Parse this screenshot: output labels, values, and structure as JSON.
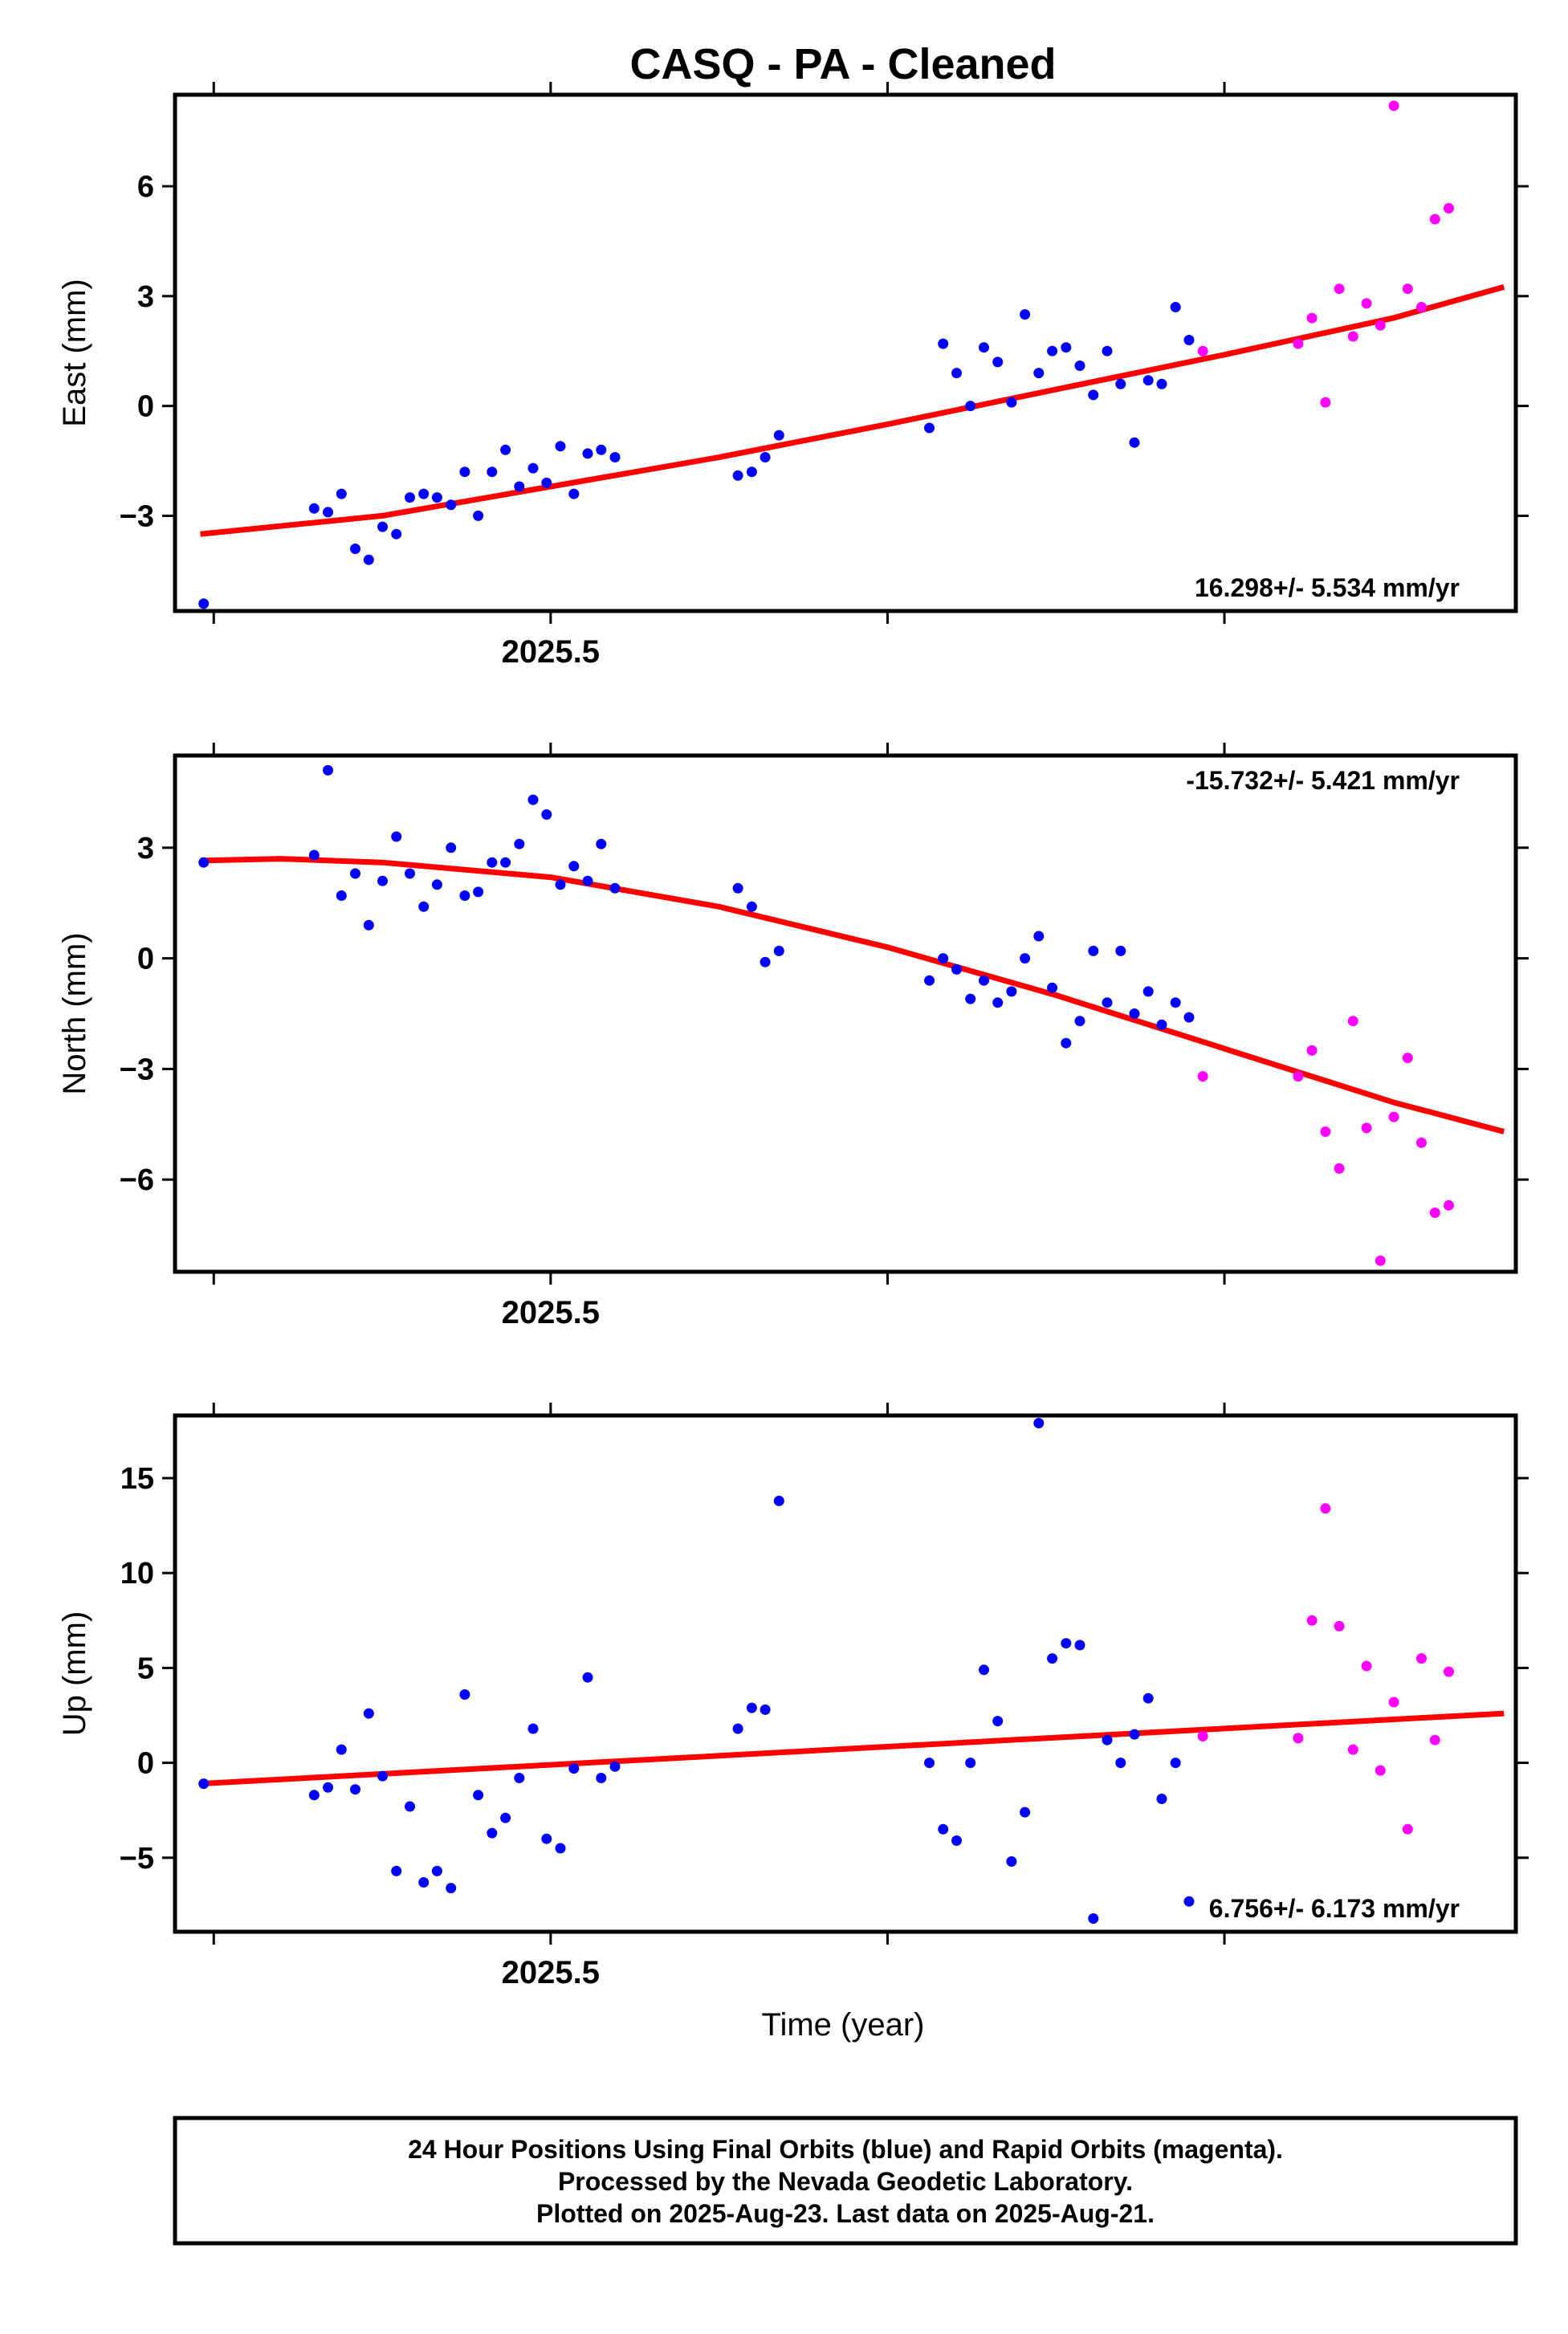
{
  "title": "CASQ  - PA - Cleaned",
  "x_axis_title": "Time (year)",
  "footer": {
    "lines": [
      "24 Hour Positions Using Final Orbits (blue) and Rapid Orbits (magenta).",
      "Processed by the Nevada Geodetic Laboratory.",
      "Plotted on 2025-Aug-23. Last data on 2025-Aug-21."
    ]
  },
  "colors": {
    "final": "#0000ff",
    "rapid": "#ff00ff",
    "fit": "#ff0000",
    "frame": "#000000"
  },
  "chart_data": [
    {
      "type": "scatter",
      "ylabel": "East (mm)",
      "xlabel": "",
      "xlim": [
        2025.3885,
        2025.7865
      ],
      "ylim": [
        -5.6,
        8.5
      ],
      "xticks_labeled": [
        2025.5
      ],
      "xticks_minor": [
        2025.4,
        2025.5,
        2025.6,
        2025.7
      ],
      "yticks": [
        -3,
        0,
        3,
        6
      ],
      "rate_label": "16.298+/- 5.534 mm/yr",
      "rate_position": "bottom-right",
      "fit": [
        [
          2025.396,
          -3.5
        ],
        [
          2025.45,
          -3.0
        ],
        [
          2025.5,
          -2.2
        ],
        [
          2025.55,
          -1.4
        ],
        [
          2025.6,
          -0.5
        ],
        [
          2025.65,
          0.45
        ],
        [
          2025.7,
          1.4
        ],
        [
          2025.75,
          2.4
        ],
        [
          2025.783,
          3.25
        ]
      ],
      "series": [
        {
          "name": "Final Orbits",
          "color": "blue",
          "points": [
            [
              2025.397,
              -5.4
            ],
            [
              2025.4298,
              -2.8
            ],
            [
              2025.4339,
              -2.9
            ],
            [
              2025.4379,
              -2.4
            ],
            [
              2025.442,
              -3.9
            ],
            [
              2025.446,
              -4.2
            ],
            [
              2025.4501,
              -3.3
            ],
            [
              2025.4542,
              -3.5
            ],
            [
              2025.4582,
              -2.5
            ],
            [
              2025.4623,
              -2.4
            ],
            [
              2025.4663,
              -2.5
            ],
            [
              2025.4704,
              -2.7
            ],
            [
              2025.4745,
              -1.8
            ],
            [
              2025.4785,
              -3.0
            ],
            [
              2025.4826,
              -1.8
            ],
            [
              2025.4866,
              -1.2
            ],
            [
              2025.4907,
              -2.2
            ],
            [
              2025.4948,
              -1.7
            ],
            [
              2025.4988,
              -2.1
            ],
            [
              2025.5029,
              -1.1
            ],
            [
              2025.5069,
              -2.4
            ],
            [
              2025.511,
              -1.3
            ],
            [
              2025.515,
              -1.2
            ],
            [
              2025.5191,
              -1.4
            ],
            [
              2025.5556,
              -1.9
            ],
            [
              2025.5597,
              -1.8
            ],
            [
              2025.5637,
              -1.4
            ],
            [
              2025.5678,
              -0.8
            ],
            [
              2025.6124,
              -0.6
            ],
            [
              2025.6165,
              1.7
            ],
            [
              2025.6205,
              0.9
            ],
            [
              2025.6246,
              0.0
            ],
            [
              2025.6286,
              1.6
            ],
            [
              2025.6327,
              1.2
            ],
            [
              2025.6368,
              0.1
            ],
            [
              2025.6408,
              2.5
            ],
            [
              2025.6449,
              0.9
            ],
            [
              2025.6489,
              1.5
            ],
            [
              2025.653,
              1.6
            ],
            [
              2025.6571,
              1.1
            ],
            [
              2025.6611,
              0.3
            ],
            [
              2025.6652,
              1.5
            ],
            [
              2025.6692,
              0.6
            ],
            [
              2025.6733,
              -1.0
            ],
            [
              2025.6774,
              0.7
            ],
            [
              2025.6814,
              0.6
            ],
            [
              2025.6855,
              2.7
            ],
            [
              2025.6895,
              1.8
            ]
          ]
        },
        {
          "name": "Rapid Orbits",
          "color": "magenta",
          "points": [
            [
              2025.6936,
              1.5
            ],
            [
              2025.7219,
              1.7
            ],
            [
              2025.726,
              2.4
            ],
            [
              2025.73,
              0.1
            ],
            [
              2025.7341,
              3.2
            ],
            [
              2025.7382,
              1.9
            ],
            [
              2025.7422,
              2.8
            ],
            [
              2025.7463,
              2.2
            ],
            [
              2025.7503,
              8.2
            ],
            [
              2025.7544,
              3.2
            ],
            [
              2025.7585,
              2.7
            ],
            [
              2025.7625,
              5.1
            ],
            [
              2025.7666,
              5.4
            ]
          ]
        }
      ]
    },
    {
      "type": "scatter",
      "ylabel": "North (mm)",
      "xlabel": "",
      "xlim": [
        2025.3885,
        2025.7865
      ],
      "ylim": [
        -8.5,
        5.5
      ],
      "xticks_labeled": [
        2025.5
      ],
      "xticks_minor": [
        2025.4,
        2025.5,
        2025.6,
        2025.7
      ],
      "yticks": [
        -6,
        -3,
        0,
        3
      ],
      "rate_label": "-15.732+/- 5.421 mm/yr",
      "rate_position": "top-right",
      "fit": [
        [
          2025.396,
          2.65
        ],
        [
          2025.42,
          2.7
        ],
        [
          2025.45,
          2.6
        ],
        [
          2025.5,
          2.2
        ],
        [
          2025.55,
          1.4
        ],
        [
          2025.6,
          0.3
        ],
        [
          2025.65,
          -1.0
        ],
        [
          2025.7,
          -2.45
        ],
        [
          2025.75,
          -3.9
        ],
        [
          2025.783,
          -4.7
        ]
      ],
      "series": [
        {
          "name": "Final Orbits",
          "color": "blue",
          "points": [
            [
              2025.397,
              2.6
            ],
            [
              2025.4298,
              2.8
            ],
            [
              2025.4339,
              5.1
            ],
            [
              2025.4379,
              1.7
            ],
            [
              2025.442,
              2.3
            ],
            [
              2025.446,
              0.9
            ],
            [
              2025.4501,
              2.1
            ],
            [
              2025.4542,
              3.3
            ],
            [
              2025.4582,
              2.3
            ],
            [
              2025.4623,
              1.4
            ],
            [
              2025.4663,
              2.0
            ],
            [
              2025.4704,
              3.0
            ],
            [
              2025.4745,
              1.7
            ],
            [
              2025.4785,
              1.8
            ],
            [
              2025.4826,
              2.6
            ],
            [
              2025.4866,
              2.6
            ],
            [
              2025.4907,
              3.1
            ],
            [
              2025.4948,
              4.3
            ],
            [
              2025.4988,
              3.9
            ],
            [
              2025.5029,
              2.0
            ],
            [
              2025.5069,
              2.5
            ],
            [
              2025.511,
              2.1
            ],
            [
              2025.515,
              3.1
            ],
            [
              2025.5191,
              1.9
            ],
            [
              2025.5556,
              1.9
            ],
            [
              2025.5597,
              1.4
            ],
            [
              2025.5637,
              -0.1
            ],
            [
              2025.5678,
              0.2
            ],
            [
              2025.6124,
              -0.6
            ],
            [
              2025.6165,
              0.0
            ],
            [
              2025.6205,
              -0.3
            ],
            [
              2025.6246,
              -1.1
            ],
            [
              2025.6286,
              -0.6
            ],
            [
              2025.6327,
              -1.2
            ],
            [
              2025.6368,
              -0.9
            ],
            [
              2025.6408,
              0.0
            ],
            [
              2025.6449,
              0.6
            ],
            [
              2025.6489,
              -0.8
            ],
            [
              2025.653,
              -2.3
            ],
            [
              2025.6571,
              -1.7
            ],
            [
              2025.6611,
              0.2
            ],
            [
              2025.6652,
              -1.2
            ],
            [
              2025.6692,
              0.2
            ],
            [
              2025.6733,
              -1.5
            ],
            [
              2025.6774,
              -0.9
            ],
            [
              2025.6814,
              -1.8
            ],
            [
              2025.6855,
              -1.2
            ],
            [
              2025.6895,
              -1.6
            ]
          ]
        },
        {
          "name": "Rapid Orbits",
          "color": "magenta",
          "points": [
            [
              2025.6936,
              -3.2
            ],
            [
              2025.7219,
              -3.2
            ],
            [
              2025.726,
              -2.5
            ],
            [
              2025.73,
              -4.7
            ],
            [
              2025.7341,
              -5.7
            ],
            [
              2025.7382,
              -1.7
            ],
            [
              2025.7422,
              -4.6
            ],
            [
              2025.7463,
              -8.2
            ],
            [
              2025.7503,
              -4.3
            ],
            [
              2025.7544,
              -2.7
            ],
            [
              2025.7585,
              -5.0
            ],
            [
              2025.7625,
              -6.9
            ],
            [
              2025.7666,
              -6.7
            ]
          ]
        }
      ]
    },
    {
      "type": "scatter",
      "ylabel": "Up (mm)",
      "xlabel": "Time (year)",
      "xlim": [
        2025.3885,
        2025.7865
      ],
      "ylim": [
        -8.9,
        18.3
      ],
      "xticks_labeled": [
        2025.5
      ],
      "xticks_minor": [
        2025.4,
        2025.5,
        2025.6,
        2025.7
      ],
      "yticks": [
        -5,
        0,
        5,
        10,
        15
      ],
      "rate_label": "6.756+/- 6.173 mm/yr",
      "rate_position": "bottom-right",
      "fit": [
        [
          2025.396,
          -1.1
        ],
        [
          2025.783,
          2.6
        ]
      ],
      "series": [
        {
          "name": "Final Orbits",
          "color": "blue",
          "points": [
            [
              2025.397,
              -1.1
            ],
            [
              2025.4298,
              -1.7
            ],
            [
              2025.4339,
              -1.3
            ],
            [
              2025.4379,
              0.7
            ],
            [
              2025.442,
              -1.4
            ],
            [
              2025.446,
              2.6
            ],
            [
              2025.4501,
              -0.7
            ],
            [
              2025.4542,
              -5.7
            ],
            [
              2025.4582,
              -2.3
            ],
            [
              2025.4623,
              -6.3
            ],
            [
              2025.4663,
              -5.7
            ],
            [
              2025.4704,
              -6.6
            ],
            [
              2025.4745,
              3.6
            ],
            [
              2025.4785,
              -1.7
            ],
            [
              2025.4826,
              -3.7
            ],
            [
              2025.4866,
              -2.9
            ],
            [
              2025.4907,
              -0.8
            ],
            [
              2025.4948,
              1.8
            ],
            [
              2025.4988,
              -4.0
            ],
            [
              2025.5029,
              -4.5
            ],
            [
              2025.5069,
              -0.3
            ],
            [
              2025.511,
              4.5
            ],
            [
              2025.515,
              -0.8
            ],
            [
              2025.5191,
              -0.2
            ],
            [
              2025.5556,
              1.8
            ],
            [
              2025.5597,
              2.9
            ],
            [
              2025.5637,
              2.8
            ],
            [
              2025.5678,
              13.8
            ],
            [
              2025.6124,
              0.0
            ],
            [
              2025.6165,
              -3.5
            ],
            [
              2025.6205,
              -4.1
            ],
            [
              2025.6246,
              0.0
            ],
            [
              2025.6286,
              4.9
            ],
            [
              2025.6327,
              2.2
            ],
            [
              2025.6368,
              -5.2
            ],
            [
              2025.6408,
              -2.6
            ],
            [
              2025.6449,
              17.9
            ],
            [
              2025.6489,
              5.5
            ],
            [
              2025.653,
              6.3
            ],
            [
              2025.6571,
              6.2
            ],
            [
              2025.6611,
              -8.2
            ],
            [
              2025.6652,
              1.2
            ],
            [
              2025.6692,
              0.0
            ],
            [
              2025.6733,
              1.5
            ],
            [
              2025.6774,
              3.4
            ],
            [
              2025.6814,
              -1.9
            ],
            [
              2025.6855,
              0.0
            ],
            [
              2025.6895,
              -7.3
            ]
          ]
        },
        {
          "name": "Rapid Orbits",
          "color": "magenta",
          "points": [
            [
              2025.6936,
              1.4
            ],
            [
              2025.7219,
              1.3
            ],
            [
              2025.726,
              7.5
            ],
            [
              2025.73,
              13.4
            ],
            [
              2025.7341,
              7.2
            ],
            [
              2025.7382,
              0.7
            ],
            [
              2025.7422,
              5.1
            ],
            [
              2025.7463,
              -0.4
            ],
            [
              2025.7503,
              3.2
            ],
            [
              2025.7544,
              -3.5
            ],
            [
              2025.7585,
              5.5
            ],
            [
              2025.7625,
              1.2
            ],
            [
              2025.7666,
              4.8
            ]
          ]
        }
      ]
    }
  ]
}
